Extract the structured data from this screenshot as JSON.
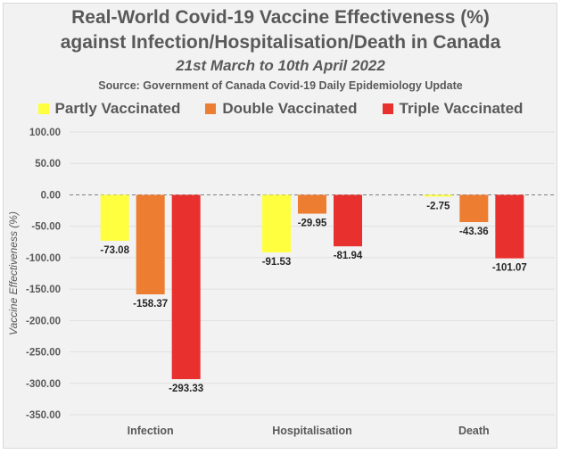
{
  "chart_data": {
    "type": "bar",
    "title": "Real-World Covid-19 Vaccine Effectiveness (%)",
    "title_line2": "against Infection/Hospitalisation/Death in Canada",
    "subtitle": "21st March to 10th April 2022",
    "source": "Source: Government of Canada Covid-19 Daily Epidemiology Update",
    "ylabel": "Vaccine Effectiveness (%)",
    "xlabel": "",
    "categories": [
      "Infection",
      "Hospitalisation",
      "Death"
    ],
    "series": [
      {
        "name": "Partly Vaccinated",
        "color": "#ffff3f",
        "values": [
          -73.08,
          -91.53,
          -2.75
        ]
      },
      {
        "name": "Double Vaccinated",
        "color": "#ed7d31",
        "values": [
          -158.37,
          -29.95,
          -43.36
        ]
      },
      {
        "name": "Triple Vaccinated",
        "color": "#e8302e",
        "values": [
          -293.33,
          -81.94,
          -101.07
        ]
      }
    ],
    "ylim": [
      -350,
      100
    ],
    "yticks": [
      "100.00",
      "50.00",
      "0.00",
      "-50.00",
      "-100.00",
      "-150.00",
      "-200.00",
      "-250.00",
      "-300.00",
      "-350.00"
    ],
    "ytick_values": [
      100,
      50,
      0,
      -50,
      -100,
      -150,
      -200,
      -250,
      -300,
      -350
    ],
    "grid": true,
    "zero_line": "dashed",
    "legend_position": "top"
  }
}
